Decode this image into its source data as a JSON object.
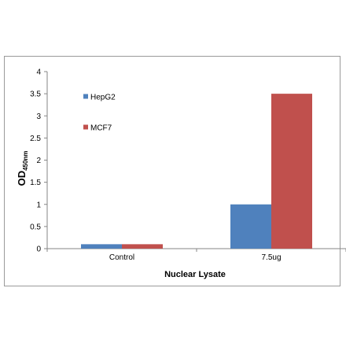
{
  "chart_data": {
    "type": "bar",
    "categories": [
      "Control",
      "7.5ug"
    ],
    "series": [
      {
        "name": "HepG2",
        "values": [
          0.1,
          1.0
        ],
        "color": "#4f81bd"
      },
      {
        "name": "MCF7",
        "values": [
          0.1,
          3.5
        ],
        "color": "#c0504d"
      }
    ],
    "ylabel_main": "OD",
    "ylabel_sub": "450nm",
    "xlabel": "Nuclear Lysate",
    "ylim": [
      0,
      4
    ],
    "yticks": [
      "0",
      "0.5",
      "1",
      "1.5",
      "2",
      "2.5",
      "3",
      "3.5",
      "4"
    ],
    "legend_position": "top-left",
    "grid": false
  }
}
